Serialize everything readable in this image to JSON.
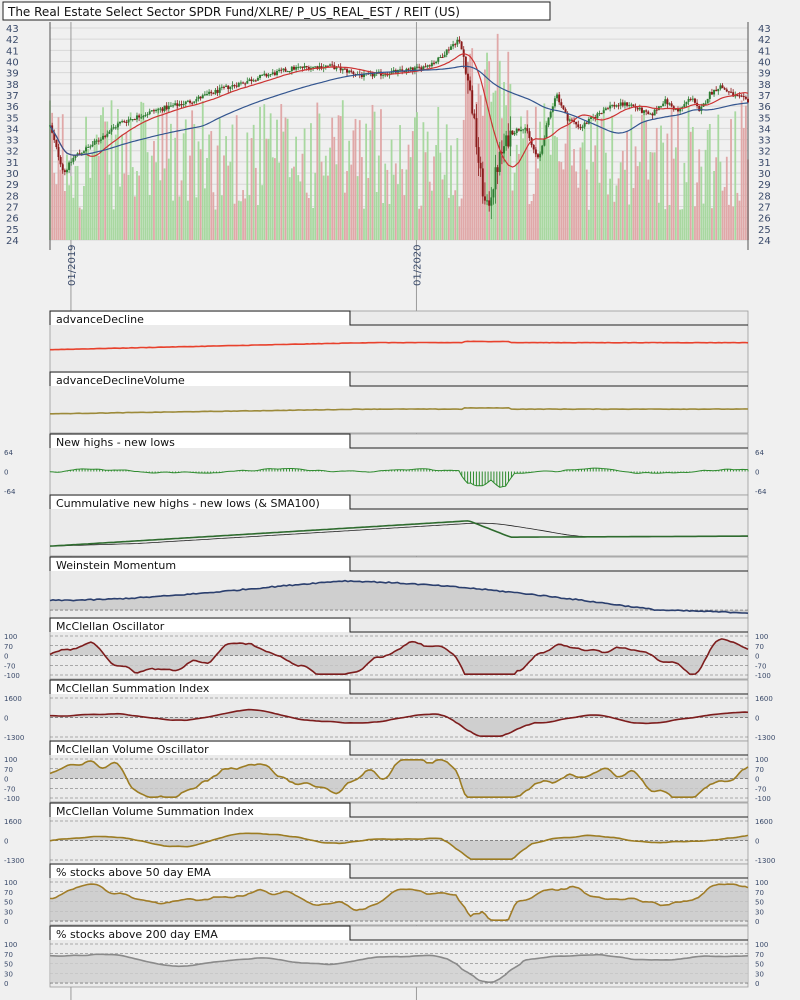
{
  "app": {
    "title": "The Real Estate Select Sector SPDR Fund/XLRE/ P_US_REAL_EST / REIT (US)"
  },
  "colors": {
    "background": "#f0f0f0",
    "candle_up": "#2e7d32",
    "candle_down": "#8b1a1a",
    "volume_up": "#a8d8a0",
    "volume_down": "#e0a8a8",
    "ma_short": "#cc3333",
    "ma_long": "#33558f",
    "grid": "#d8d8d8",
    "axis_text": "#3a4a6a"
  },
  "chart_data": {
    "type": "candlestick",
    "title": "The Real Estate Select Sector SPDR Fund/XLRE/ P_US_REAL_EST / REIT (US)",
    "x_tick_labels": [
      "01/2019",
      "01/2020"
    ],
    "y_ticks": [
      24,
      25,
      26,
      27,
      28,
      29,
      30,
      31,
      32,
      33,
      34,
      35,
      36,
      37,
      38,
      39,
      40,
      41,
      42,
      43
    ],
    "ylim": [
      24,
      43
    ],
    "price_path": [
      [
        0,
        34.2
      ],
      [
        0.01,
        32.0
      ],
      [
        0.02,
        30.0
      ],
      [
        0.035,
        31.5
      ],
      [
        0.06,
        32.5
      ],
      [
        0.1,
        34.5
      ],
      [
        0.15,
        35.6
      ],
      [
        0.2,
        36.4
      ],
      [
        0.25,
        37.6
      ],
      [
        0.3,
        38.6
      ],
      [
        0.35,
        39.4
      ],
      [
        0.4,
        39.6
      ],
      [
        0.45,
        38.7
      ],
      [
        0.5,
        39.1
      ],
      [
        0.53,
        39.4
      ],
      [
        0.555,
        40.1
      ],
      [
        0.57,
        41.1
      ],
      [
        0.585,
        42.0
      ],
      [
        0.595,
        40.0
      ],
      [
        0.605,
        35.8
      ],
      [
        0.615,
        30.5
      ],
      [
        0.625,
        26.5
      ],
      [
        0.633,
        28.5
      ],
      [
        0.645,
        31.5
      ],
      [
        0.66,
        33.6
      ],
      [
        0.68,
        34.2
      ],
      [
        0.69,
        32.5
      ],
      [
        0.7,
        31.1
      ],
      [
        0.71,
        33.8
      ],
      [
        0.725,
        37.2
      ],
      [
        0.74,
        35.0
      ],
      [
        0.76,
        34.1
      ],
      [
        0.8,
        36.0
      ],
      [
        0.83,
        36.2
      ],
      [
        0.86,
        35.1
      ],
      [
        0.88,
        36.5
      ],
      [
        0.9,
        35.5
      ],
      [
        0.92,
        36.9
      ],
      [
        0.93,
        35.4
      ],
      [
        0.945,
        37.1
      ],
      [
        0.96,
        37.8
      ],
      [
        0.98,
        36.9
      ],
      [
        1.0,
        36.5
      ]
    ],
    "series": [
      {
        "name": "advanceDecline"
      },
      {
        "name": "advanceDeclineVolume"
      },
      {
        "name": "New highs - new lows",
        "axis_labels": [
          "64",
          "0",
          "-64"
        ]
      },
      {
        "name": "Cummulative new highs - new lows (& SMA100)"
      },
      {
        "name": "Weinstein Momentum"
      },
      {
        "name": "McClellan Oscillator",
        "axis_labels": [
          "100",
          "70",
          "0",
          "-70",
          "-100"
        ]
      },
      {
        "name": "McClellan Summation Index",
        "axis_labels": [
          "1600",
          "0",
          "-1300"
        ]
      },
      {
        "name": "McClellan Volume Oscillator",
        "axis_labels": [
          "100",
          "70",
          "0",
          "-70",
          "-100"
        ]
      },
      {
        "name": "McClellan Volume Summation Index",
        "axis_labels": [
          "1600",
          "0",
          "-1300"
        ]
      },
      {
        "name": "% stocks above 50 day EMA",
        "axis_labels": [
          "100",
          "70",
          "50",
          "30",
          "0"
        ]
      },
      {
        "name": "% stocks above 200 day EMA",
        "axis_labels": [
          "100",
          "70",
          "50",
          "30",
          "0"
        ]
      }
    ]
  }
}
